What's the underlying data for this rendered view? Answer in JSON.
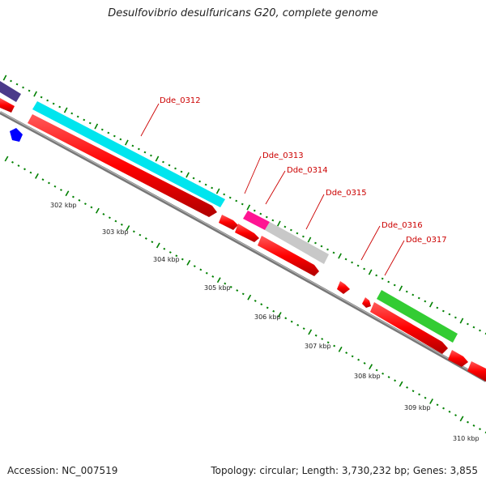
{
  "title": "Desulfovibrio desulfuricans G20, complete genome",
  "footer": {
    "accession": "Accession: NC_007519",
    "summary": "Topology: circular; Length: 3,730,232 bp; Genes: 3,855"
  },
  "colors": {
    "backbone": "#888888",
    "cds": "#ff0000",
    "tick": "#008000",
    "gene_label": "#cc0000",
    "feature_cyan": "#00e5ee",
    "feature_magenta": "#ff1493",
    "feature_gray": "#c8c8c8",
    "feature_green": "#33cc33",
    "feature_purple": "#4b3a8a",
    "feature_blue": "#0000ff"
  },
  "gene_labels": [
    "Dde_0312",
    "Dde_0313",
    "Dde_0314",
    "Dde_0315",
    "Dde_0316",
    "Dde_0317"
  ],
  "kbp_labels": [
    "302 kbp",
    "303 kbp",
    "304 kbp",
    "305 kbp",
    "306 kbp",
    "307 kbp",
    "308 kbp",
    "309 kbp",
    "310 kbp"
  ]
}
